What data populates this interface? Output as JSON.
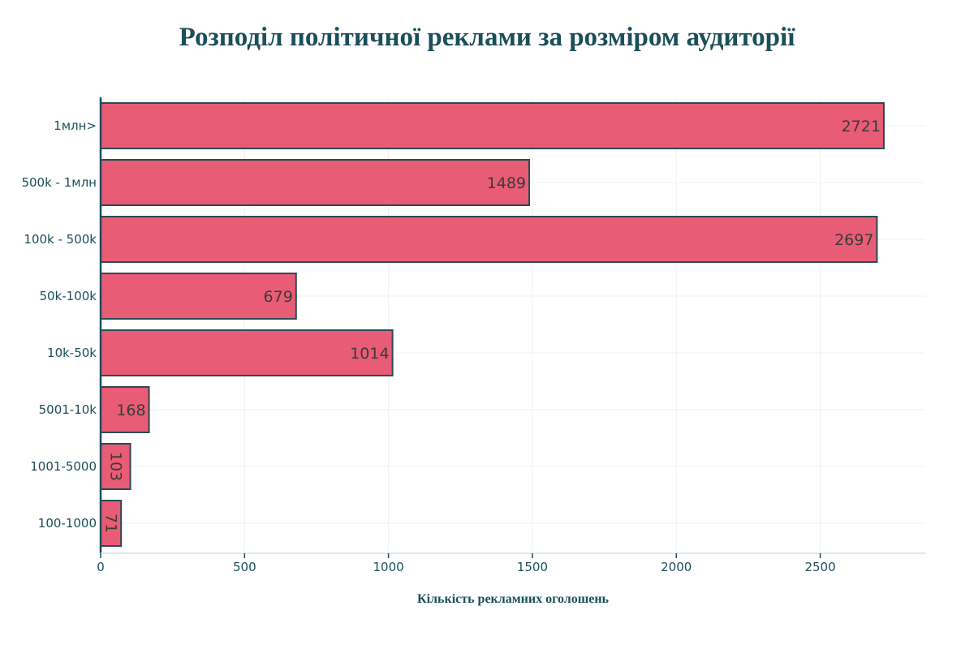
{
  "chart_data": {
    "type": "bar",
    "orientation": "horizontal",
    "title": "Розподіл політичної реклами за розміром аудиторії",
    "xlabel": "Кількість рекламних оголошень",
    "ylabel": "",
    "categories": [
      "1млн>",
      "500k - 1млн",
      "100k - 500k",
      "50k-100k",
      "10k-50k",
      "5001-10k",
      "1001-5000",
      "100-1000"
    ],
    "values": [
      2721,
      1489,
      2697,
      679,
      1014,
      168,
      103,
      71
    ],
    "xlim": [
      0,
      2865
    ],
    "xticks": [
      0,
      500,
      1000,
      1500,
      2000,
      2500
    ],
    "grid": true,
    "colors": {
      "bar_fill": "#e95c75",
      "bar_stroke": "#2b4a55",
      "axis": "#1b4f5a",
      "grid": "#eef1f4",
      "label": "#3b3b3b",
      "title": "#1b4f5a"
    }
  }
}
